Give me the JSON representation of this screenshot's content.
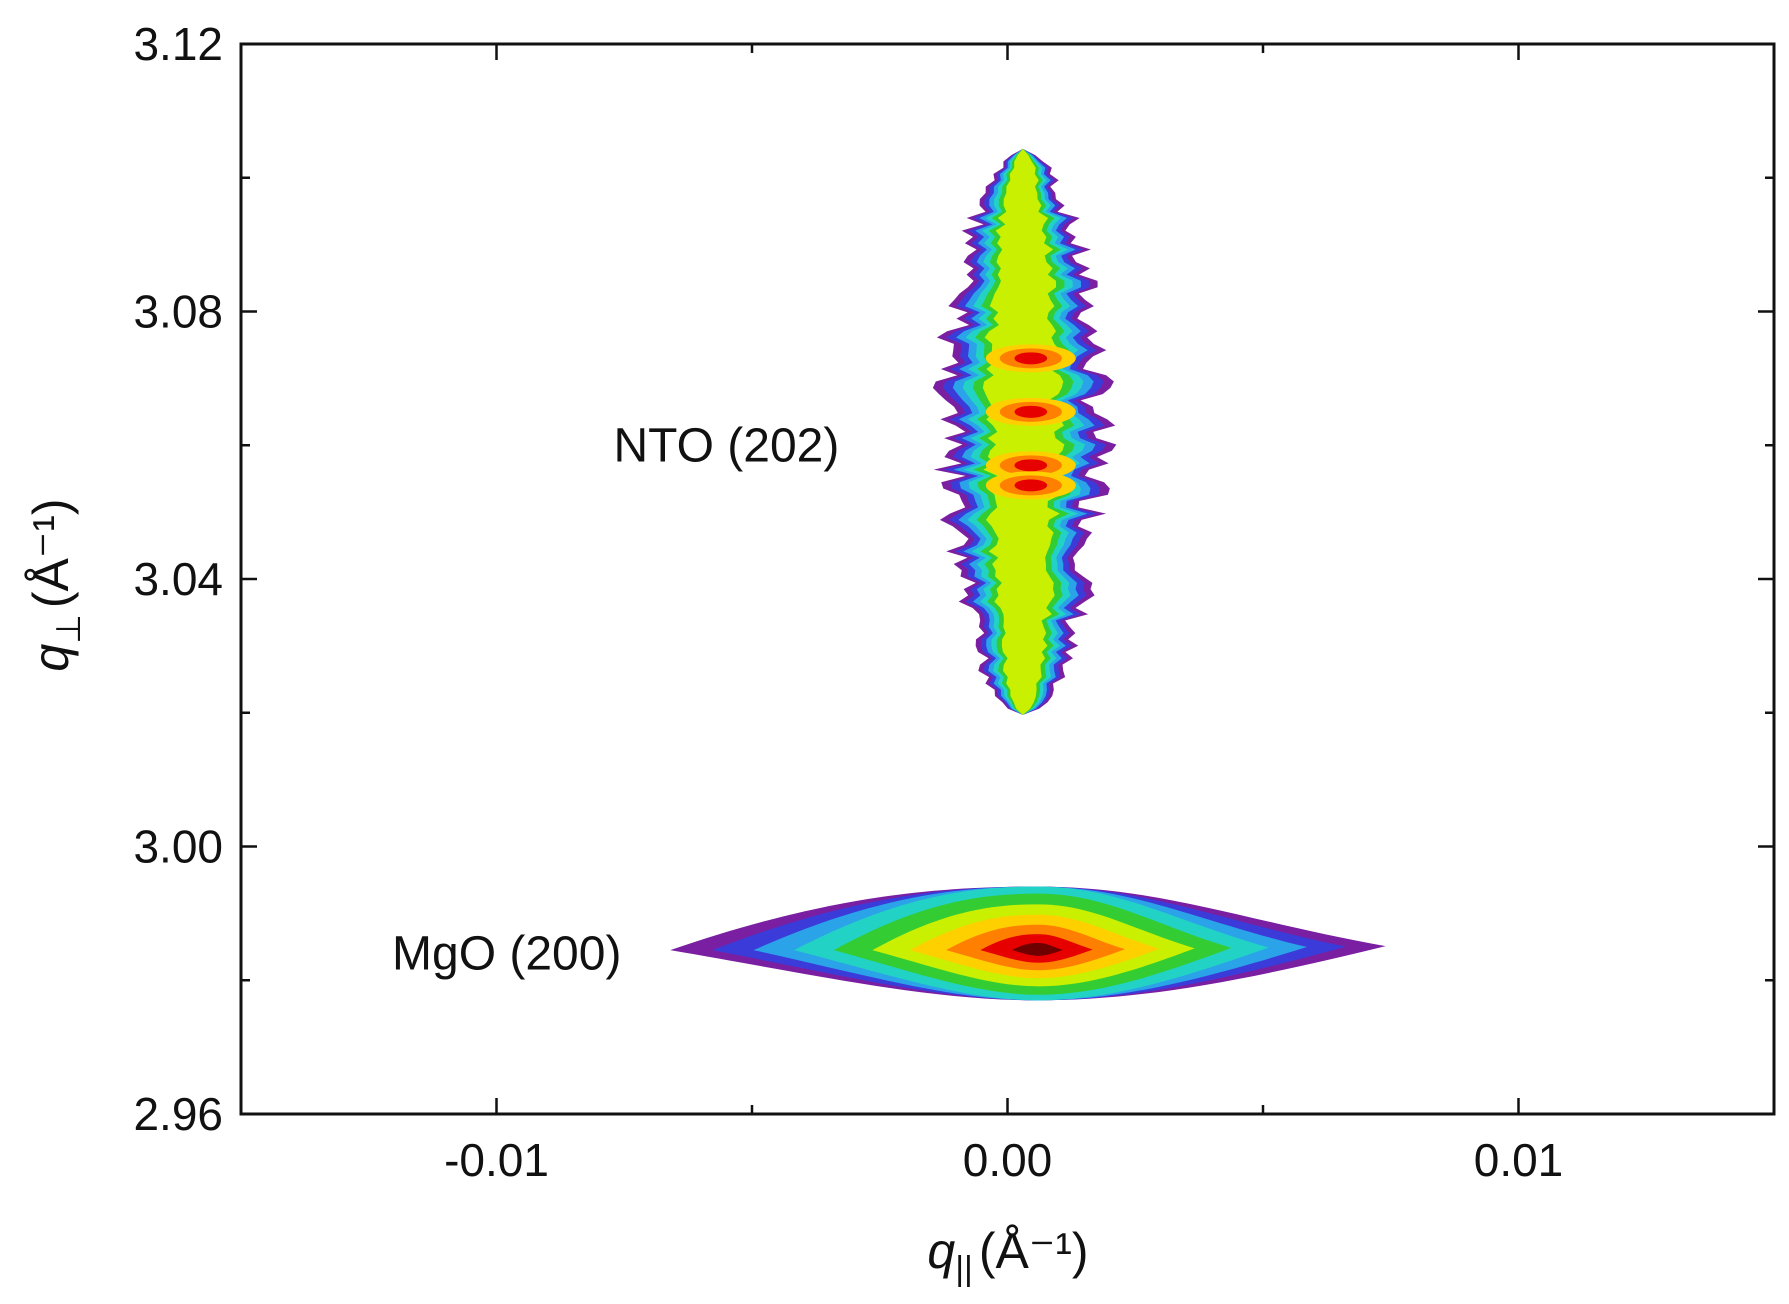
{
  "chart_data": {
    "type": "heatmap",
    "title": "",
    "xlabel": {
      "symbol": "q",
      "subscript": "||",
      "unit": "(Å⁻¹)"
    },
    "ylabel": {
      "symbol": "q",
      "subscript": "⊥",
      "unit": "(Å⁻¹)"
    },
    "xlim": [
      -0.015,
      0.015
    ],
    "ylim": [
      2.96,
      3.12
    ],
    "x_ticks": [
      {
        "value": -0.01,
        "label": "-0.01"
      },
      {
        "value": 0.0,
        "label": "0.00"
      },
      {
        "value": 0.01,
        "label": "0.01"
      }
    ],
    "x_minor_ticks": [
      -0.005,
      0.005
    ],
    "y_ticks": [
      {
        "value": 2.96,
        "label": "2.96"
      },
      {
        "value": 3.0,
        "label": "3.00"
      },
      {
        "value": 3.04,
        "label": "3.04"
      },
      {
        "value": 3.08,
        "label": "3.08"
      },
      {
        "value": 3.12,
        "label": "3.12"
      }
    ],
    "y_minor_ticks": [
      2.98,
      3.02,
      3.06,
      3.1
    ],
    "grid": false,
    "colormap": [
      "#7a1fa2",
      "#3b3bd9",
      "#2aa3e8",
      "#22d3c5",
      "#33cc33",
      "#c8f000",
      "#ffd000",
      "#ff8000",
      "#e60000",
      "#6e0000"
    ],
    "peaks": [
      {
        "label": "NTO (202)",
        "label_position": [
          -0.0055,
          3.06
        ],
        "center": [
          0.0003,
          3.06
        ],
        "x_halfwidth": 0.0016,
        "y_range": [
          3.016,
          3.108
        ],
        "hotspots": [
          3.073,
          3.065,
          3.057,
          3.054
        ]
      },
      {
        "label": "MgO (200)",
        "label_position": [
          -0.0098,
          2.984
        ],
        "center": [
          0.0006,
          2.9845
        ],
        "x_range": [
          -0.0066,
          0.0074
        ],
        "y_range": [
          2.977,
          2.994
        ]
      }
    ]
  }
}
